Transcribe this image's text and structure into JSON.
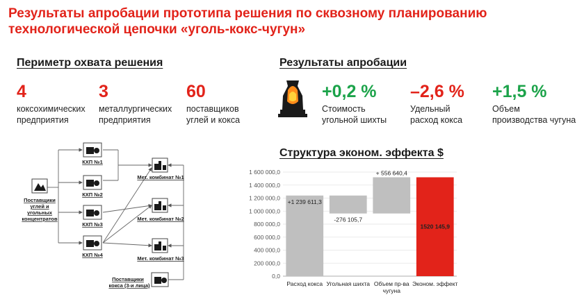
{
  "title_line1": "Результаты апробации прототипа решения по сквозному планированию",
  "title_line2": "технологической цепочки «уголь-кокс-чугун»",
  "perimeter": {
    "heading": "Периметр охвата решения",
    "items": [
      {
        "value": "4",
        "line1": "коксохимических",
        "line2": "предприятия"
      },
      {
        "value": "3",
        "line1": "металлургических",
        "line2": "предприятия"
      },
      {
        "value": "60",
        "line1": "поставщиков",
        "line2": "углей и кокса"
      }
    ]
  },
  "results": {
    "heading": "Результаты апробации",
    "icon": "blast-furnace-icon",
    "items": [
      {
        "value": "+0,2 %",
        "line1": "Стоимость",
        "line2": "угольной шихты",
        "color": "#1ca34a"
      },
      {
        "value": "–2,6 %",
        "line1": "Удельный",
        "line2": "расход кокса",
        "color": "#e2231a"
      },
      {
        "value": "+1,5 %",
        "line1": "Объем",
        "line2": "производства чугуна",
        "color": "#1ca34a"
      }
    ]
  },
  "structure": {
    "heading": "Структура эконом. эффекта",
    "currency": "$"
  },
  "diagram": {
    "suppliers_line1": "Поставщики",
    "suppliers_line2": "углей и",
    "suppliers_line3": "угольных",
    "suppliers_line4": "концентратов",
    "kxp1": "КХП №1",
    "kxp2": "КХП №2",
    "kxp3": "КХП №3",
    "kxp4": "КХП №4",
    "met1": "Мет. комбинат №1",
    "met2": "Мет. комбинат №2",
    "met3": "Мет. комбинат №3",
    "coke_line1": "Поставщики",
    "coke_line2": "кокса (3-и лица)"
  },
  "chart_data": {
    "type": "bar",
    "subtype": "waterfall",
    "categories": [
      "Расход кокса",
      "Угольная шихта",
      "Объем пр-ва чугуна",
      "Эконом. эффект"
    ],
    "category_lines": [
      [
        "Расход кокса"
      ],
      [
        "Угольная шихта"
      ],
      [
        "Объем пр-ва",
        "чугуна"
      ],
      [
        "Эконом. эффект"
      ]
    ],
    "values": [
      1239611.3,
      -276105.7,
      556640.4,
      1520145.9
    ],
    "data_labels": [
      "+1 239 611,3",
      "-276 105,7",
      "+ 556 640,4",
      "1520 145,9"
    ],
    "ylim": [
      0,
      1600000
    ],
    "yticks": [
      0,
      200000,
      400000,
      600000,
      800000,
      1000000,
      1200000,
      1400000,
      1600000
    ],
    "ytick_labels": [
      "0,0",
      "200 000,0",
      "400 000,0",
      "600 000,0",
      "800 000,0",
      "1 000 000,0",
      "1 200 000,0",
      "1 400 000,0",
      "1 600 000,0"
    ],
    "colors": {
      "change": "#bfbfbf",
      "total": "#e2231a"
    },
    "grid": true
  }
}
